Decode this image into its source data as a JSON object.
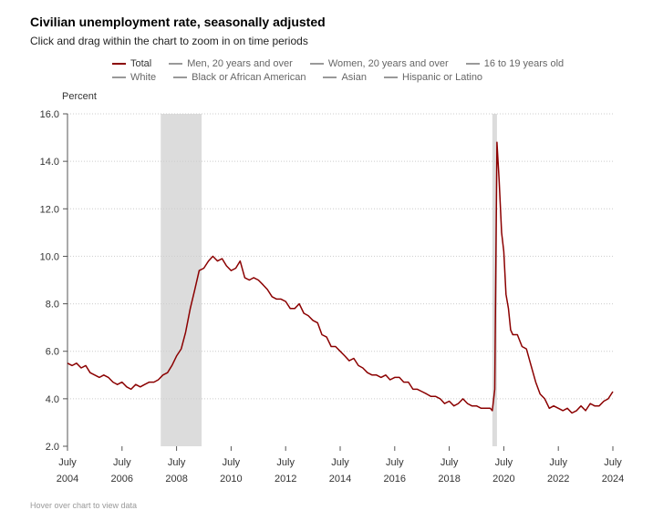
{
  "chart": {
    "title": "Civilian unemployment rate, seasonally adjusted",
    "subtitle": "Click and drag within the chart to zoom in on time periods",
    "hover_hint": "Hover over chart to view data"
  },
  "legend": {
    "row1": [
      {
        "label": "Total",
        "color": "#8b0000"
      },
      {
        "label": "Men, 20 years and over",
        "color": "#999999"
      },
      {
        "label": "Women, 20 years and over",
        "color": "#999999"
      },
      {
        "label": "16 to 19 years old",
        "color": "#999999"
      }
    ],
    "row2": [
      {
        "label": "White",
        "color": "#999999"
      },
      {
        "label": "Black or African American",
        "color": "#999999"
      },
      {
        "label": "Asian",
        "color": "#999999"
      },
      {
        "label": "Hispanic or Latino",
        "color": "#999999"
      }
    ]
  },
  "chart_data": {
    "type": "line",
    "title": "Civilian unemployment rate, seasonally adjusted",
    "ylabel": "Percent",
    "xlabel": "",
    "ylim": [
      2.0,
      16.0
    ],
    "xlim": [
      2004.5,
      2024.5
    ],
    "yticks": [
      "2.0",
      "4.0",
      "6.0",
      "8.0",
      "10.0",
      "12.0",
      "14.0",
      "16.0"
    ],
    "xticks": [
      {
        "value": 2004.5,
        "month": "July",
        "year": "2004"
      },
      {
        "value": 2006.5,
        "month": "July",
        "year": "2006"
      },
      {
        "value": 2008.5,
        "month": "July",
        "year": "2008"
      },
      {
        "value": 2010.5,
        "month": "July",
        "year": "2010"
      },
      {
        "value": 2012.5,
        "month": "July",
        "year": "2012"
      },
      {
        "value": 2014.5,
        "month": "July",
        "year": "2014"
      },
      {
        "value": 2016.5,
        "month": "July",
        "year": "2016"
      },
      {
        "value": 2018.5,
        "month": "July",
        "year": "2018"
      },
      {
        "value": 2020.5,
        "month": "July",
        "year": "2020"
      },
      {
        "value": 2022.5,
        "month": "July",
        "year": "2022"
      },
      {
        "value": 2024.5,
        "month": "July",
        "year": "2024"
      }
    ],
    "grid": true,
    "recessions": [
      [
        2007.92,
        2009.42
      ],
      [
        2020.08,
        2020.25
      ]
    ],
    "series": [
      {
        "name": "Total",
        "color": "#8b0000",
        "points": [
          [
            2004.5,
            5.5
          ],
          [
            2004.67,
            5.4
          ],
          [
            2004.83,
            5.5
          ],
          [
            2005.0,
            5.3
          ],
          [
            2005.17,
            5.4
          ],
          [
            2005.33,
            5.1
          ],
          [
            2005.5,
            5.0
          ],
          [
            2005.67,
            4.9
          ],
          [
            2005.83,
            5.0
          ],
          [
            2006.0,
            4.9
          ],
          [
            2006.17,
            4.7
          ],
          [
            2006.33,
            4.6
          ],
          [
            2006.5,
            4.7
          ],
          [
            2006.67,
            4.5
          ],
          [
            2006.83,
            4.4
          ],
          [
            2007.0,
            4.6
          ],
          [
            2007.17,
            4.5
          ],
          [
            2007.33,
            4.6
          ],
          [
            2007.5,
            4.7
          ],
          [
            2007.67,
            4.7
          ],
          [
            2007.83,
            4.8
          ],
          [
            2008.0,
            5.0
          ],
          [
            2008.17,
            5.1
          ],
          [
            2008.33,
            5.4
          ],
          [
            2008.5,
            5.8
          ],
          [
            2008.67,
            6.1
          ],
          [
            2008.83,
            6.8
          ],
          [
            2009.0,
            7.8
          ],
          [
            2009.17,
            8.6
          ],
          [
            2009.33,
            9.4
          ],
          [
            2009.5,
            9.5
          ],
          [
            2009.67,
            9.8
          ],
          [
            2009.83,
            10.0
          ],
          [
            2010.0,
            9.8
          ],
          [
            2010.17,
            9.9
          ],
          [
            2010.33,
            9.6
          ],
          [
            2010.5,
            9.4
          ],
          [
            2010.67,
            9.5
          ],
          [
            2010.83,
            9.8
          ],
          [
            2011.0,
            9.1
          ],
          [
            2011.17,
            9.0
          ],
          [
            2011.33,
            9.1
          ],
          [
            2011.5,
            9.0
          ],
          [
            2011.67,
            8.8
          ],
          [
            2011.83,
            8.6
          ],
          [
            2012.0,
            8.3
          ],
          [
            2012.17,
            8.2
          ],
          [
            2012.33,
            8.2
          ],
          [
            2012.5,
            8.1
          ],
          [
            2012.67,
            7.8
          ],
          [
            2012.83,
            7.8
          ],
          [
            2013.0,
            8.0
          ],
          [
            2013.17,
            7.6
          ],
          [
            2013.33,
            7.5
          ],
          [
            2013.5,
            7.3
          ],
          [
            2013.67,
            7.2
          ],
          [
            2013.83,
            6.7
          ],
          [
            2014.0,
            6.6
          ],
          [
            2014.17,
            6.2
          ],
          [
            2014.33,
            6.2
          ],
          [
            2014.5,
            6.0
          ],
          [
            2014.67,
            5.8
          ],
          [
            2014.83,
            5.6
          ],
          [
            2015.0,
            5.7
          ],
          [
            2015.17,
            5.4
          ],
          [
            2015.33,
            5.3
          ],
          [
            2015.5,
            5.1
          ],
          [
            2015.67,
            5.0
          ],
          [
            2015.83,
            5.0
          ],
          [
            2016.0,
            4.9
          ],
          [
            2016.17,
            5.0
          ],
          [
            2016.33,
            4.8
          ],
          [
            2016.5,
            4.9
          ],
          [
            2016.67,
            4.9
          ],
          [
            2016.83,
            4.7
          ],
          [
            2017.0,
            4.7
          ],
          [
            2017.17,
            4.4
          ],
          [
            2017.33,
            4.4
          ],
          [
            2017.5,
            4.3
          ],
          [
            2017.67,
            4.2
          ],
          [
            2017.83,
            4.1
          ],
          [
            2018.0,
            4.1
          ],
          [
            2018.17,
            4.0
          ],
          [
            2018.33,
            3.8
          ],
          [
            2018.5,
            3.9
          ],
          [
            2018.67,
            3.7
          ],
          [
            2018.83,
            3.8
          ],
          [
            2019.0,
            4.0
          ],
          [
            2019.17,
            3.8
          ],
          [
            2019.33,
            3.7
          ],
          [
            2019.5,
            3.7
          ],
          [
            2019.67,
            3.6
          ],
          [
            2019.83,
            3.6
          ],
          [
            2020.0,
            3.6
          ],
          [
            2020.08,
            3.5
          ],
          [
            2020.17,
            4.4
          ],
          [
            2020.25,
            14.8
          ],
          [
            2020.33,
            13.2
          ],
          [
            2020.42,
            11.0
          ],
          [
            2020.5,
            10.2
          ],
          [
            2020.58,
            8.4
          ],
          [
            2020.67,
            7.8
          ],
          [
            2020.75,
            6.9
          ],
          [
            2020.83,
            6.7
          ],
          [
            2021.0,
            6.7
          ],
          [
            2021.17,
            6.2
          ],
          [
            2021.33,
            6.1
          ],
          [
            2021.5,
            5.4
          ],
          [
            2021.67,
            4.7
          ],
          [
            2021.83,
            4.2
          ],
          [
            2022.0,
            4.0
          ],
          [
            2022.17,
            3.6
          ],
          [
            2022.33,
            3.7
          ],
          [
            2022.5,
            3.6
          ],
          [
            2022.67,
            3.5
          ],
          [
            2022.83,
            3.6
          ],
          [
            2023.0,
            3.4
          ],
          [
            2023.17,
            3.5
          ],
          [
            2023.33,
            3.7
          ],
          [
            2023.5,
            3.5
          ],
          [
            2023.67,
            3.8
          ],
          [
            2023.83,
            3.7
          ],
          [
            2024.0,
            3.7
          ],
          [
            2024.17,
            3.9
          ],
          [
            2024.33,
            4.0
          ],
          [
            2024.5,
            4.3
          ]
        ]
      }
    ]
  }
}
